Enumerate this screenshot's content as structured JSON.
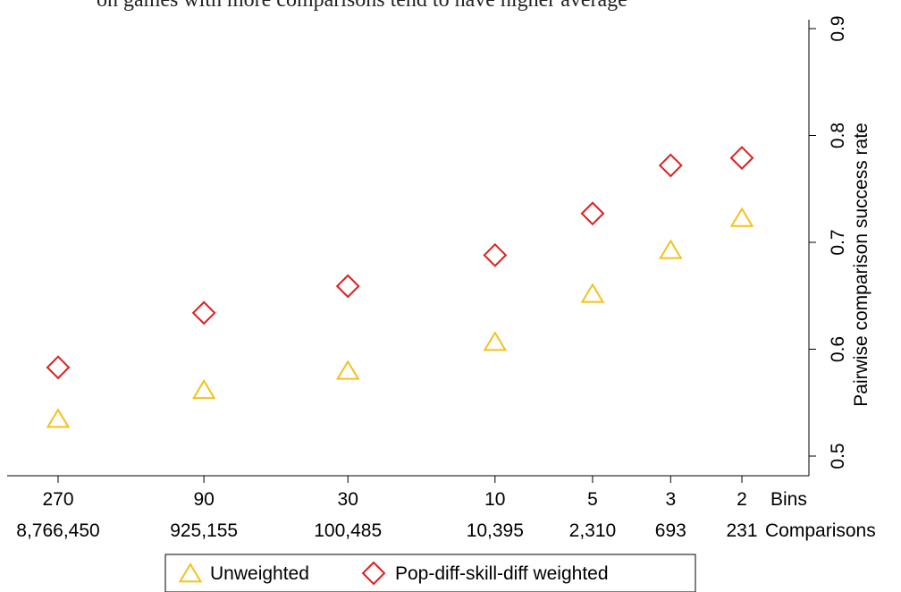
{
  "caption_fragment": "on games with more comparisons tend to have higher average",
  "chart_data": {
    "type": "scatter",
    "ylabel": "Pairwise comparison success rate",
    "ylim": [
      0.5,
      0.9
    ],
    "yticks": [
      "0.5",
      "0.6",
      "0.7",
      "0.8",
      "0.9"
    ],
    "x_row_labels": {
      "bins": "Bins",
      "comparisons": "Comparisons"
    },
    "categories": [
      {
        "bins": "270",
        "comparisons": "8,766,450"
      },
      {
        "bins": "90",
        "comparisons": "925,155"
      },
      {
        "bins": "30",
        "comparisons": "100,485"
      },
      {
        "bins": "10",
        "comparisons": "10,395"
      },
      {
        "bins": "5",
        "comparisons": "2,310"
      },
      {
        "bins": "3",
        "comparisons": "693"
      },
      {
        "bins": "2",
        "comparisons": "231"
      }
    ],
    "x_log_comparisons": true,
    "series": [
      {
        "name": "Unweighted",
        "marker": "triangle",
        "color": "#f2c21b",
        "values": [
          0.535,
          0.562,
          0.58,
          0.607,
          0.652,
          0.693,
          0.723
        ]
      },
      {
        "name": "Pop-diff-skill-diff weighted",
        "marker": "diamond",
        "color": "#e01e1e",
        "values": [
          0.583,
          0.634,
          0.659,
          0.688,
          0.727,
          0.772,
          0.779
        ]
      }
    ],
    "legend": "bottom",
    "grid": false
  }
}
